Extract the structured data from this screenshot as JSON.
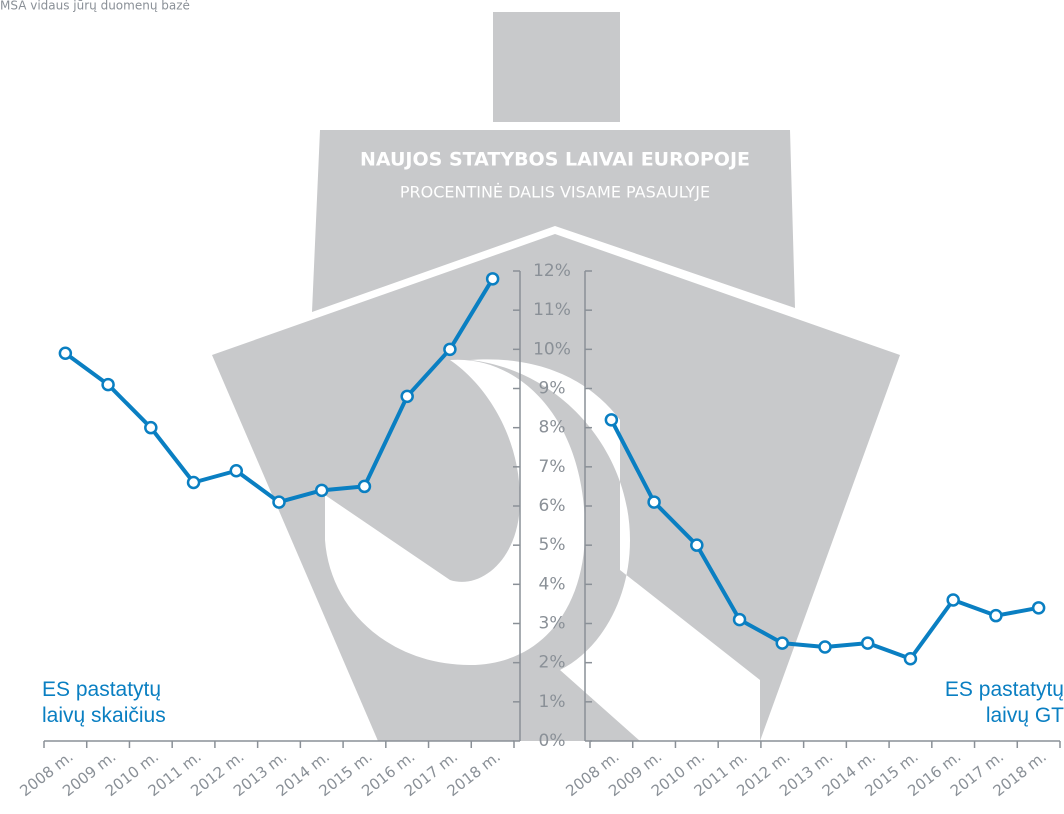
{
  "chart_data": {
    "type": "line",
    "title": "NAUJOS STATYBOS LAIVAI EUROPOJE",
    "subtitle": "PROCENTINĖ DALIS VISAME PASAULYJE",
    "source": "MSA vidaus jūrų duomenų bazė",
    "categories": [
      "2008 m.",
      "2009 m.",
      "2010 m.",
      "2011 m.",
      "2012 m.",
      "2013 m.",
      "2014 m.",
      "2015 m.",
      "2016 m.",
      "2017 m.",
      "2018 m."
    ],
    "series": [
      {
        "name": "ES pastatytų laivų skaičius",
        "color": "#0a7fc2",
        "values": [
          9.9,
          9.1,
          8.0,
          6.6,
          6.9,
          6.1,
          6.4,
          6.5,
          8.8,
          10.0,
          11.8
        ]
      },
      {
        "name": "ES pastatytų laivų GT",
        "color": "#0a7fc2",
        "values": [
          8.2,
          6.1,
          5.0,
          3.1,
          2.5,
          2.4,
          2.5,
          2.1,
          3.6,
          3.2,
          3.4
        ]
      }
    ],
    "ylim": [
      0,
      12
    ],
    "yticks": [
      {
        "value": 0,
        "label": "0%"
      },
      {
        "value": 1,
        "label": "1%"
      },
      {
        "value": 2,
        "label": "2%"
      },
      {
        "value": 3,
        "label": "3%"
      },
      {
        "value": 4,
        "label": "4%"
      },
      {
        "value": 5,
        "label": "5%"
      },
      {
        "value": 6,
        "label": "6%"
      },
      {
        "value": 7,
        "label": "7%"
      },
      {
        "value": 8,
        "label": "8%"
      },
      {
        "value": 9,
        "label": "9%"
      },
      {
        "value": 10,
        "label": "10%"
      },
      {
        "value": 11,
        "label": "11%"
      },
      {
        "value": 12,
        "label": "12%"
      }
    ]
  }
}
